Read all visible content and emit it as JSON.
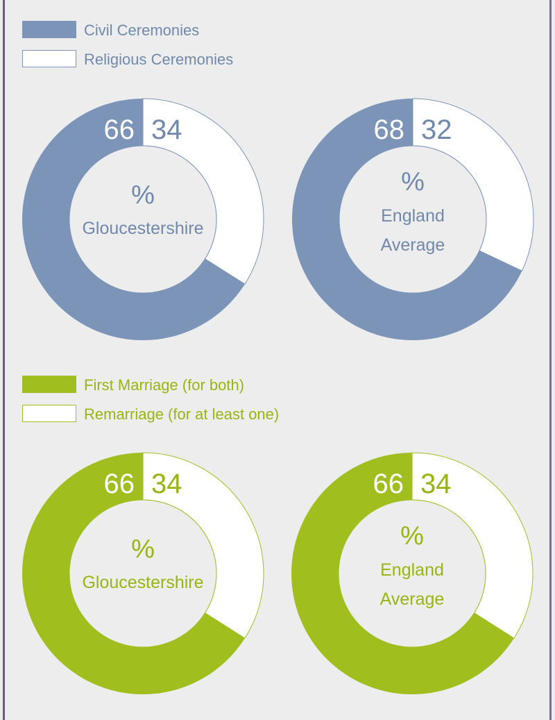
{
  "colors": {
    "background": "#ededed",
    "frame": "#6a5a7c",
    "blue": "#7b94b8",
    "blue_text": "#7188ad",
    "green": "#a0be1e",
    "green_text": "#97b512",
    "white": "#ffffff"
  },
  "legends": [
    {
      "items": [
        {
          "label": "Civil Ceremonies",
          "fill": "#7b94b8",
          "border": "#7b94b8"
        },
        {
          "label": "Religious Ceremonies",
          "fill": "#ffffff",
          "border": "#7b94b8"
        }
      ],
      "text_color": "#7188ad"
    },
    {
      "items": [
        {
          "label": "First Marriage (for both)",
          "fill": "#a0be1e",
          "border": "#a0be1e"
        },
        {
          "label": "Remarriage (for at least one)",
          "fill": "#ffffff",
          "border": "#a0be1e"
        }
      ],
      "text_color": "#97b512"
    }
  ],
  "chart_data": [
    {
      "type": "pie",
      "categories": [
        "Civil Ceremonies",
        "Religious Ceremonies"
      ],
      "values": [
        66,
        34
      ],
      "labels": [
        "66",
        "34"
      ],
      "center_lines": [
        "%",
        "Gloucestershire"
      ],
      "color": "#7b94b8"
    },
    {
      "type": "pie",
      "categories": [
        "Civil Ceremonies",
        "Religious Ceremonies"
      ],
      "values": [
        68,
        32
      ],
      "labels": [
        "68",
        "32"
      ],
      "center_lines": [
        "%",
        "England",
        "Average"
      ],
      "color": "#7b94b8"
    },
    {
      "type": "pie",
      "categories": [
        "First Marriage (for both)",
        "Remarriage (for at least one)"
      ],
      "values": [
        66,
        34
      ],
      "labels": [
        "66",
        "34"
      ],
      "center_lines": [
        "%",
        "Gloucestershire"
      ],
      "color": "#a0be1e"
    },
    {
      "type": "pie",
      "categories": [
        "First Marriage (for both)",
        "Remarriage (for at least one)"
      ],
      "values": [
        66,
        34
      ],
      "labels": [
        "66",
        "34"
      ],
      "center_lines": [
        "%",
        "England",
        "Average"
      ],
      "color": "#a0be1e"
    }
  ]
}
